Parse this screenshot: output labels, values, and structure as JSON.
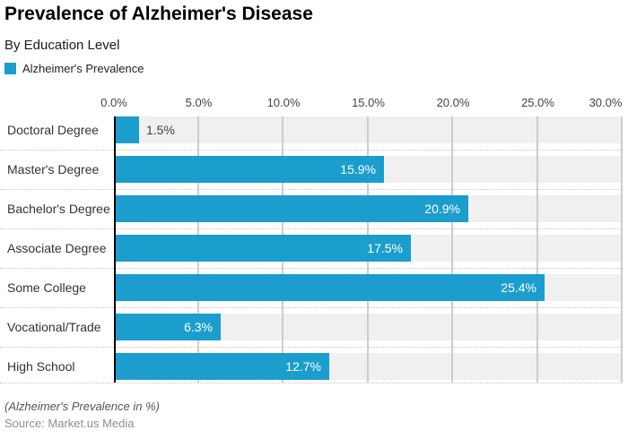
{
  "header": {
    "title": "Prevalence of Alzheimer's Disease",
    "subtitle": "By Education Level"
  },
  "legend": {
    "label": "Alzheimer's Prevalence",
    "swatch_color": "#1b9ecd"
  },
  "footer": {
    "note": "(Alzheimer's Prevalence in %)",
    "source": "Source: Market.us Media"
  },
  "chart_data": {
    "type": "bar",
    "orientation": "horizontal",
    "title": "Prevalence of Alzheimer's Disease",
    "subtitle": "By Education Level",
    "series_name": "Alzheimer's Prevalence",
    "categories": [
      "Doctoral Degree",
      "Master's Degree",
      "Bachelor's Degree",
      "Associate Degree",
      "Some College",
      "Vocational/Trade",
      "High School"
    ],
    "values": [
      1.5,
      15.9,
      20.9,
      17.5,
      25.4,
      6.3,
      12.7
    ],
    "value_labels": [
      "1.5%",
      "15.9%",
      "20.9%",
      "17.5%",
      "25.4%",
      "6.3%",
      "12.7%"
    ],
    "x_ticks": [
      "0.0%",
      "5.0%",
      "10.0%",
      "15.0%",
      "20.0%",
      "25.0%",
      "30.0%"
    ],
    "x_tick_values": [
      0,
      5,
      10,
      15,
      20,
      25,
      30
    ],
    "xlim": [
      0,
      30
    ],
    "xlabel": "",
    "ylabel": "",
    "grid": true,
    "legend_position": "top-left",
    "bar_color": "#1b9ecd",
    "band_color": "#f0f0f0",
    "gridline_color": "#cccccc",
    "value_label_inside_color": "#ffffff",
    "value_label_outside_color": "#404040"
  }
}
